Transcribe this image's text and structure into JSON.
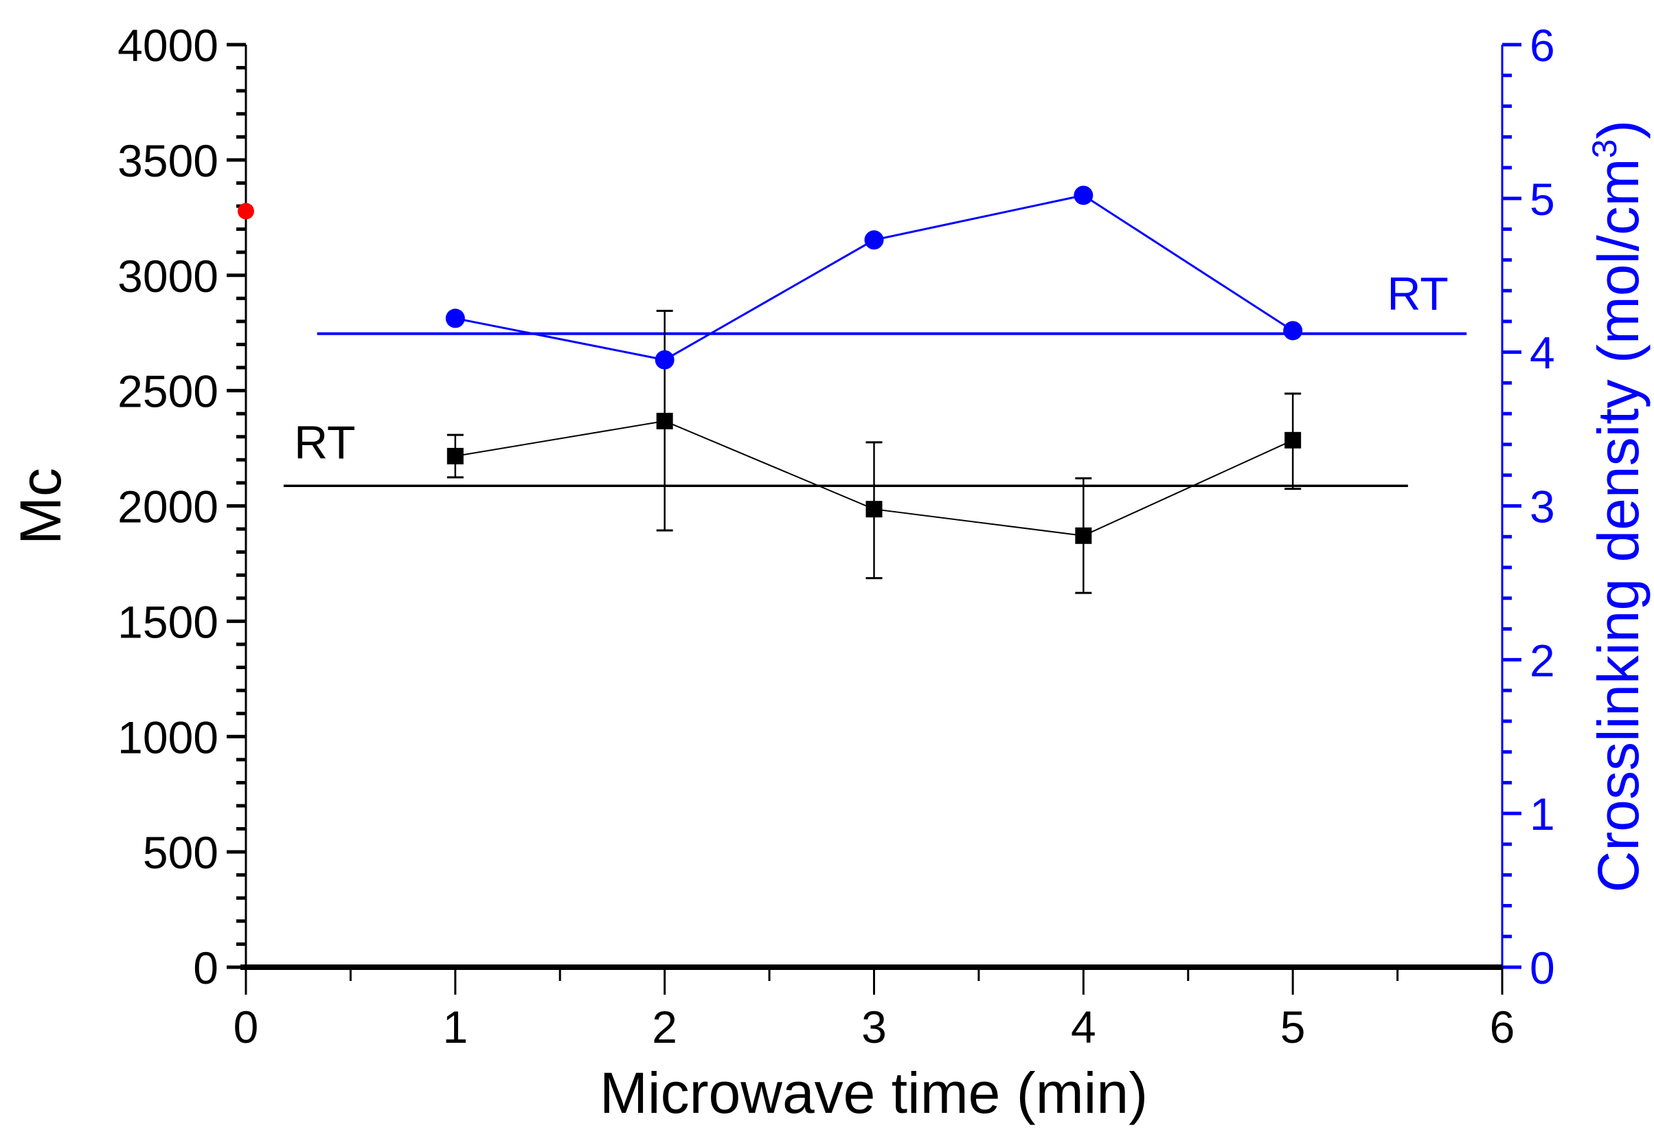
{
  "chart_data": {
    "type": "line",
    "title": "",
    "xlabel": "Microwave time (min)",
    "ylabel_left": "Mc",
    "ylabel_right": "Crosslinking density (mol/cm",
    "ylabel_right_sup": "3",
    "ylabel_right_close": ")",
    "xlim": [
      0,
      6
    ],
    "ylim_left": [
      0,
      4000
    ],
    "ylim_right": [
      0,
      6
    ],
    "x_ticks": [
      "0",
      "1",
      "2",
      "3",
      "4",
      "5",
      "6"
    ],
    "y_left_ticks": [
      "0",
      "500",
      "1000",
      "1500",
      "2000",
      "2500",
      "3000",
      "3500",
      "4000"
    ],
    "y_right_ticks": [
      "0",
      "1",
      "2",
      "3",
      "4",
      "5",
      "6"
    ],
    "grid": false,
    "colors": {
      "left": "#000000",
      "right": "#0000ff",
      "extra_point": "#ff0000"
    },
    "series": [
      {
        "axis": "left",
        "marker": "square",
        "color": "#000000",
        "x": [
          1,
          2,
          3,
          4,
          5
        ],
        "y": [
          2216,
          2368,
          1986,
          1871,
          2285
        ],
        "err_low": [
          2124,
          1894,
          1687,
          1623,
          2074
        ],
        "err_high": [
          2308,
          2846,
          2276,
          2120,
          2487
        ]
      },
      {
        "axis": "right",
        "marker": "circle",
        "color": "#0000ff",
        "x": [
          1,
          2,
          3,
          4,
          5
        ],
        "y": [
          4.22,
          3.95,
          4.73,
          5.02,
          4.14
        ]
      }
    ],
    "extra_points": [
      {
        "axis": "left",
        "x": 0,
        "y": 3278,
        "color": "#ff0000"
      }
    ],
    "reference_lines": [
      {
        "axis": "left",
        "label": "RT",
        "y": 2087,
        "x_range": [
          0.18,
          5.55
        ],
        "color": "#000000"
      },
      {
        "axis": "right",
        "label": "RT",
        "y": 4.12,
        "x_range": [
          0.34,
          5.83
        ],
        "color": "#0000ff"
      }
    ]
  }
}
